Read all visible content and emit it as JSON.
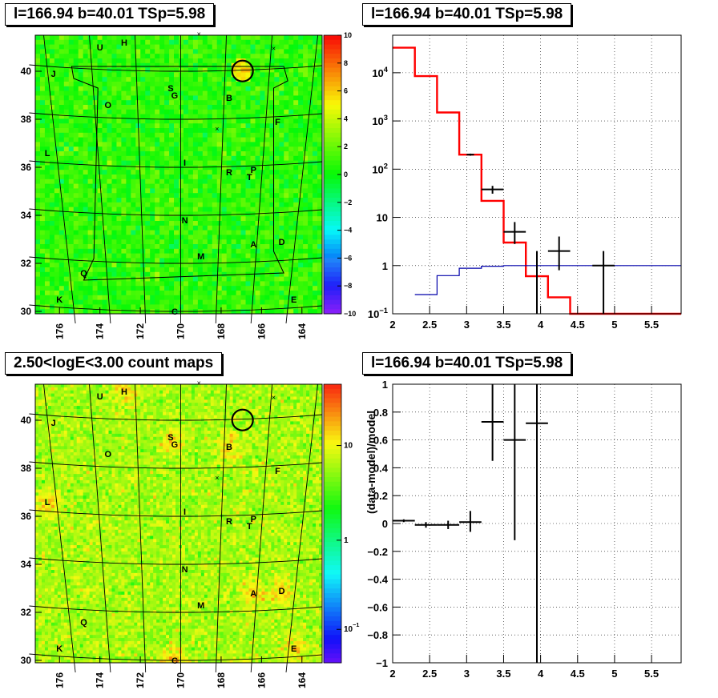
{
  "panels": {
    "tl_title": "l=166.94 b=40.01 TSp=5.98",
    "tr_title": "l=166.94 b=40.01 TSp=5.98",
    "bl_title": "2.50<logE<3.00 count maps",
    "br_title": "l=166.94 b=40.01 TSp=5.98"
  },
  "chart_data": [
    {
      "type": "heatmap",
      "panel": "top-left",
      "title": "l=166.94 b=40.01 TSp=5.98",
      "x_ticks": [
        "176",
        "174",
        "172",
        "170",
        "168",
        "166",
        "164"
      ],
      "y_ticks": [
        "30",
        "32",
        "34",
        "36",
        "38",
        "40"
      ],
      "xlim": [
        177.2,
        163.0
      ],
      "ylim": [
        29.9,
        41.5
      ],
      "colorbar_ticks": [
        "10",
        "8",
        "6",
        "4",
        "2",
        "0",
        "−2",
        "−4",
        "−6",
        "−8",
        "−10"
      ],
      "colorbar_range": [
        -10,
        10
      ],
      "source_labels": [
        {
          "label": "U",
          "l": 174.0,
          "b": 41.0
        },
        {
          "label": "H",
          "l": 172.8,
          "b": 41.2
        },
        {
          "label": "J",
          "l": 176.3,
          "b": 39.9
        },
        {
          "label": "O",
          "l": 173.6,
          "b": 38.6
        },
        {
          "label": "S",
          "l": 170.5,
          "b": 39.3
        },
        {
          "label": "G",
          "l": 170.3,
          "b": 39.0
        },
        {
          "label": "B",
          "l": 167.6,
          "b": 38.9
        },
        {
          "label": "F",
          "l": 165.2,
          "b": 37.9
        },
        {
          "label": "L",
          "l": 176.6,
          "b": 36.6
        },
        {
          "label": "I",
          "l": 169.8,
          "b": 36.2
        },
        {
          "label": "R",
          "l": 167.6,
          "b": 35.8
        },
        {
          "label": "P",
          "l": 166.4,
          "b": 35.9
        },
        {
          "label": "T",
          "l": 166.6,
          "b": 35.6
        },
        {
          "label": "N",
          "l": 169.8,
          "b": 33.8
        },
        {
          "label": "A",
          "l": 166.4,
          "b": 32.8
        },
        {
          "label": "D",
          "l": 165.0,
          "b": 32.9
        },
        {
          "label": "M",
          "l": 169.0,
          "b": 32.3
        },
        {
          "label": "Q",
          "l": 174.8,
          "b": 31.6
        },
        {
          "label": "K",
          "l": 176.0,
          "b": 30.5
        },
        {
          "label": "C",
          "l": 170.3,
          "b": 30.0
        },
        {
          "label": "E",
          "l": 164.4,
          "b": 30.5
        }
      ],
      "circle": {
        "l": 166.94,
        "b": 40.01
      }
    },
    {
      "type": "line",
      "panel": "top-right",
      "title": "l=166.94 b=40.01 TSp=5.98",
      "x_ticks": [
        "2",
        "2.5",
        "3",
        "3.5",
        "4",
        "4.5",
        "5",
        "5.5"
      ],
      "y_ticks": [
        "10^-1",
        "1",
        "10",
        "10^2",
        "10^3",
        "10^4"
      ],
      "xlim": [
        2.0,
        5.9
      ],
      "ylim": [
        0.1,
        60000
      ],
      "ylog": true,
      "grid": true,
      "series": [
        {
          "color": "#ff0000",
          "style": "step",
          "edges": [
            2.0,
            2.3,
            2.6,
            2.9,
            3.2,
            3.5,
            3.8,
            4.1,
            4.4,
            4.7,
            5.0,
            5.3,
            5.6,
            5.9
          ],
          "values": [
            33000,
            8500,
            1500,
            200,
            22,
            3.0,
            0.6,
            0.22,
            0.1,
            0.1,
            0.1,
            0.1,
            0.1
          ]
        },
        {
          "color": "#0000aa",
          "style": "step",
          "edges": [
            2.3,
            2.6,
            2.9,
            3.2,
            3.5,
            3.8,
            4.1,
            4.4,
            4.7,
            5.0,
            5.3,
            5.6,
            5.9
          ],
          "values": [
            0.25,
            0.62,
            0.88,
            0.97,
            1.0,
            1.0,
            1.0,
            1.0,
            1.0,
            1.0,
            1.0,
            1.0
          ]
        },
        {
          "color": "#000000",
          "style": "errorbar",
          "points": [
            {
              "x": 3.05,
              "y": 200,
              "xerr": 0.05,
              "ylo": 190,
              "yhi": 210
            },
            {
              "x": 3.35,
              "y": 38,
              "xerr": 0.15,
              "ylo": 31,
              "yhi": 45
            },
            {
              "x": 3.65,
              "y": 5.0,
              "xerr": 0.15,
              "ylo": 2.8,
              "yhi": 8.0
            },
            {
              "x": 3.95,
              "y": 1.0,
              "xerr": 0.0,
              "ylo": 0.1,
              "yhi": 2.0
            },
            {
              "x": 4.25,
              "y": 2.0,
              "xerr": 0.15,
              "ylo": 0.8,
              "yhi": 4.0
            },
            {
              "x": 4.85,
              "y": 1.0,
              "xerr": 0.15,
              "ylo": 0.1,
              "yhi": 2.0
            }
          ]
        }
      ]
    },
    {
      "type": "heatmap",
      "panel": "bottom-left",
      "title": "2.50<logE<3.00 count maps",
      "x_ticks": [
        "176",
        "174",
        "172",
        "170",
        "168",
        "166",
        "164"
      ],
      "y_ticks": [
        "30",
        "32",
        "34",
        "36",
        "38",
        "40"
      ],
      "xlim": [
        177.2,
        163.0
      ],
      "ylim": [
        29.9,
        41.5
      ],
      "colorbar_ticks": [
        "10",
        "1",
        "10^-1"
      ],
      "colorbar_log": true
    },
    {
      "type": "scatter",
      "panel": "bottom-right",
      "title": "l=166.94 b=40.01 TSp=5.98",
      "ylabel": "(data-model)/model",
      "x_ticks": [
        "2",
        "2.5",
        "3",
        "3.5",
        "4",
        "4.5",
        "5",
        "5.5"
      ],
      "y_ticks": [
        "−1",
        "−0.8",
        "−0.6",
        "−0.4",
        "−0.2",
        "0",
        "0.2",
        "0.4",
        "0.6",
        "0.8",
        "1"
      ],
      "xlim": [
        2.0,
        5.9
      ],
      "ylim": [
        -1.0,
        1.0
      ],
      "grid": true,
      "points": [
        {
          "x": 2.15,
          "y": 0.02,
          "xerr": 0.15,
          "ylo": 0.01,
          "yhi": 0.03
        },
        {
          "x": 2.45,
          "y": -0.01,
          "xerr": 0.15,
          "ylo": -0.03,
          "yhi": 0.01
        },
        {
          "x": 2.75,
          "y": -0.01,
          "xerr": 0.15,
          "ylo": -0.04,
          "yhi": 0.02
        },
        {
          "x": 3.05,
          "y": 0.01,
          "xerr": 0.15,
          "ylo": -0.06,
          "yhi": 0.09
        },
        {
          "x": 3.35,
          "y": 0.73,
          "xerr": 0.15,
          "ylo": 0.45,
          "yhi": 1.0
        },
        {
          "x": 3.65,
          "y": 0.6,
          "xerr": 0.15,
          "ylo": -0.12,
          "yhi": 1.0
        },
        {
          "x": 3.95,
          "y": 0.72,
          "xerr": 0.15,
          "ylo": -1.0,
          "yhi": 1.0
        }
      ]
    }
  ]
}
